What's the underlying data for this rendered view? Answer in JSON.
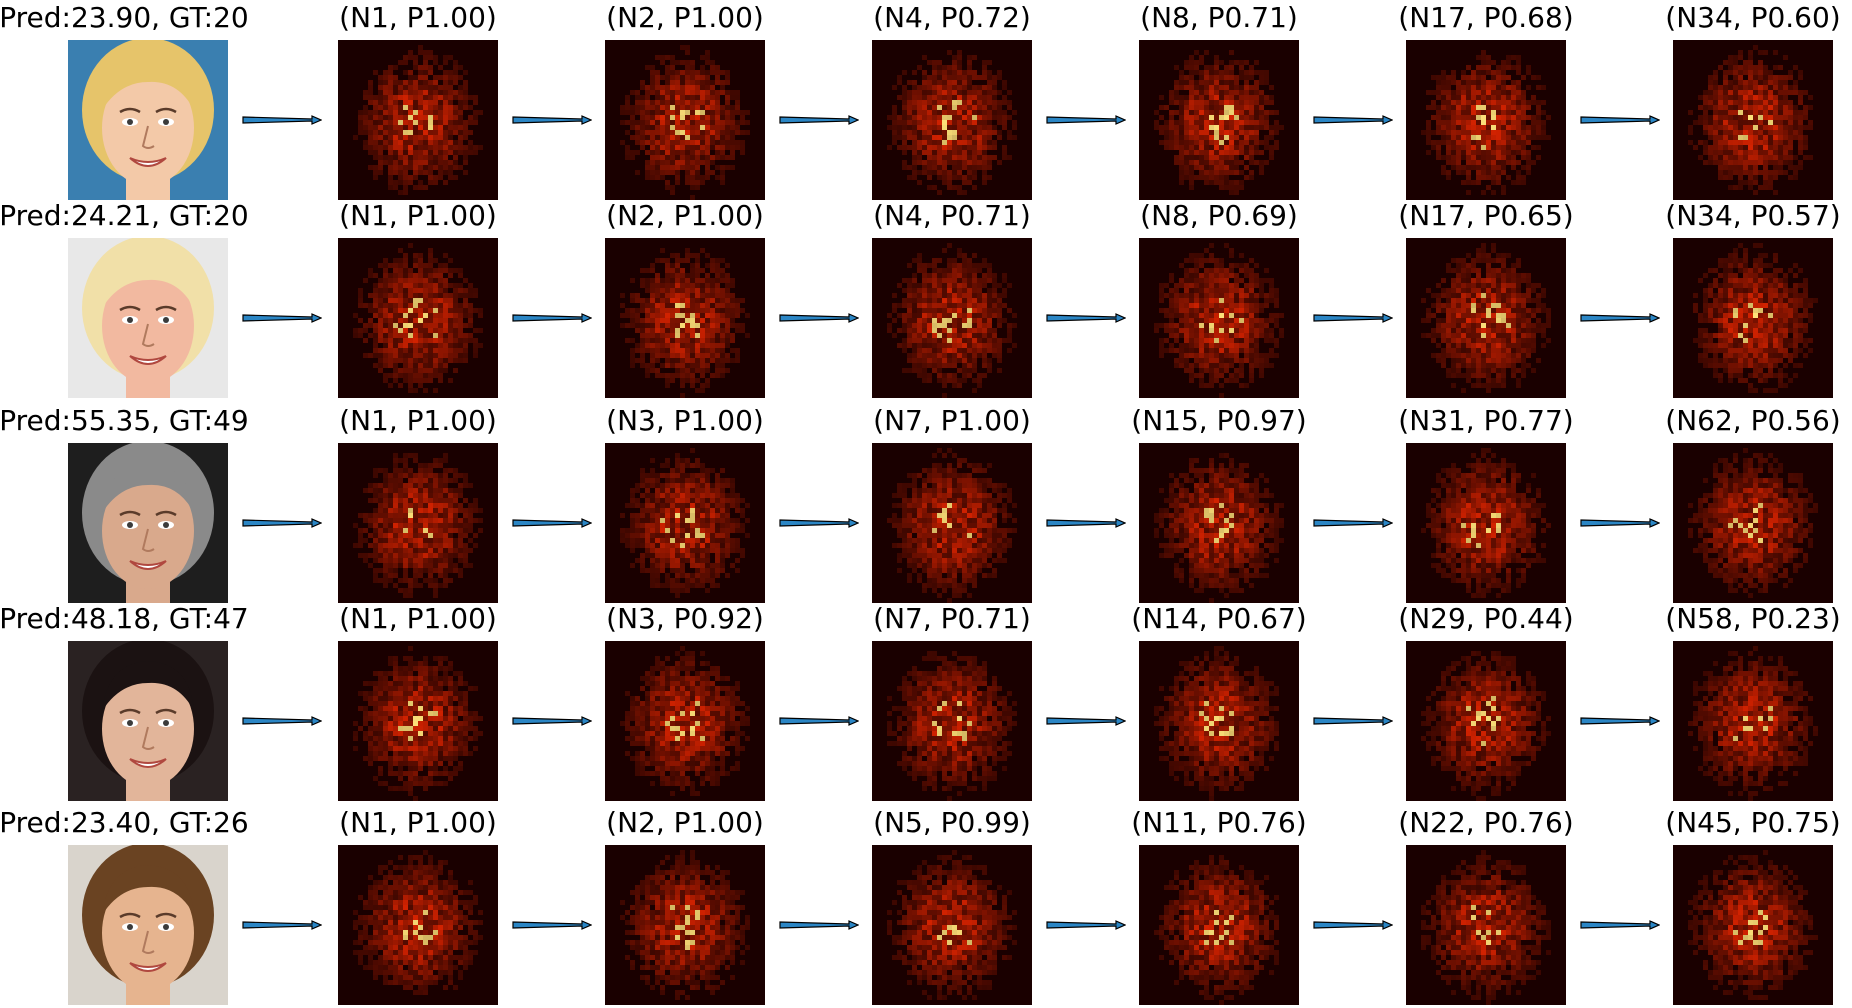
{
  "colors": {
    "heatmap_base": "#1a0000",
    "heatmap_hot": "#ff2a00",
    "heatmap_peak": "#ffe27a",
    "arrow_fill": "#2b86c5",
    "arrow_stroke": "#000000"
  },
  "rows": [
    {
      "face_label": "Pred:23.90, GT:20",
      "face": {
        "skin": "#f3c9a8",
        "hair": "#e6c46a",
        "background": "#3a7fb0"
      },
      "heatmaps": [
        {
          "label": "(N1, P1.00)",
          "n": 1,
          "p": 1.0
        },
        {
          "label": "(N2, P1.00)",
          "n": 2,
          "p": 1.0
        },
        {
          "label": "(N4, P0.72)",
          "n": 4,
          "p": 0.72
        },
        {
          "label": "(N8, P0.71)",
          "n": 8,
          "p": 0.71
        },
        {
          "label": "(N17, P0.68)",
          "n": 17,
          "p": 0.68
        },
        {
          "label": "(N34, P0.60)",
          "n": 34,
          "p": 0.6
        }
      ]
    },
    {
      "face_label": "Pred:24.21, GT:20",
      "face": {
        "skin": "#f2b9a0",
        "hair": "#f1e0a8",
        "background": "#e8e8e8"
      },
      "heatmaps": [
        {
          "label": "(N1, P1.00)",
          "n": 1,
          "p": 1.0
        },
        {
          "label": "(N2, P1.00)",
          "n": 2,
          "p": 1.0
        },
        {
          "label": "(N4, P0.71)",
          "n": 4,
          "p": 0.71
        },
        {
          "label": "(N8, P0.69)",
          "n": 8,
          "p": 0.69
        },
        {
          "label": "(N17, P0.65)",
          "n": 17,
          "p": 0.65
        },
        {
          "label": "(N34, P0.57)",
          "n": 34,
          "p": 0.57
        }
      ]
    },
    {
      "face_label": "Pred:55.35, GT:49",
      "face": {
        "skin": "#d9a98c",
        "hair": "#8a8a8a",
        "background": "#1e1e1e"
      },
      "heatmaps": [
        {
          "label": "(N1, P1.00)",
          "n": 1,
          "p": 1.0
        },
        {
          "label": "(N3, P1.00)",
          "n": 3,
          "p": 1.0
        },
        {
          "label": "(N7, P1.00)",
          "n": 7,
          "p": 1.0
        },
        {
          "label": "(N15, P0.97)",
          "n": 15,
          "p": 0.97
        },
        {
          "label": "(N31, P0.77)",
          "n": 31,
          "p": 0.77
        },
        {
          "label": "(N62, P0.56)",
          "n": 62,
          "p": 0.56
        }
      ]
    },
    {
      "face_label": "Pred:48.18, GT:47",
      "face": {
        "skin": "#e2b59a",
        "hair": "#1b1212",
        "background": "#2a2222"
      },
      "heatmaps": [
        {
          "label": "(N1, P1.00)",
          "n": 1,
          "p": 1.0
        },
        {
          "label": "(N3, P0.92)",
          "n": 3,
          "p": 0.92
        },
        {
          "label": "(N7, P0.71)",
          "n": 7,
          "p": 0.71
        },
        {
          "label": "(N14, P0.67)",
          "n": 14,
          "p": 0.67
        },
        {
          "label": "(N29, P0.44)",
          "n": 29,
          "p": 0.44
        },
        {
          "label": "(N58, P0.23)",
          "n": 58,
          "p": 0.23
        }
      ]
    },
    {
      "face_label": "Pred:23.40, GT:26",
      "face": {
        "skin": "#e6b48f",
        "hair": "#6a4322",
        "background": "#d9d4cc"
      },
      "heatmaps": [
        {
          "label": "(N1, P1.00)",
          "n": 1,
          "p": 1.0
        },
        {
          "label": "(N2, P1.00)",
          "n": 2,
          "p": 1.0
        },
        {
          "label": "(N5, P0.99)",
          "n": 5,
          "p": 0.99
        },
        {
          "label": "(N11, P0.76)",
          "n": 11,
          "p": 0.76
        },
        {
          "label": "(N22, P0.76)",
          "n": 22,
          "p": 0.76
        },
        {
          "label": "(N45, P0.75)",
          "n": 45,
          "p": 0.75
        }
      ]
    }
  ]
}
